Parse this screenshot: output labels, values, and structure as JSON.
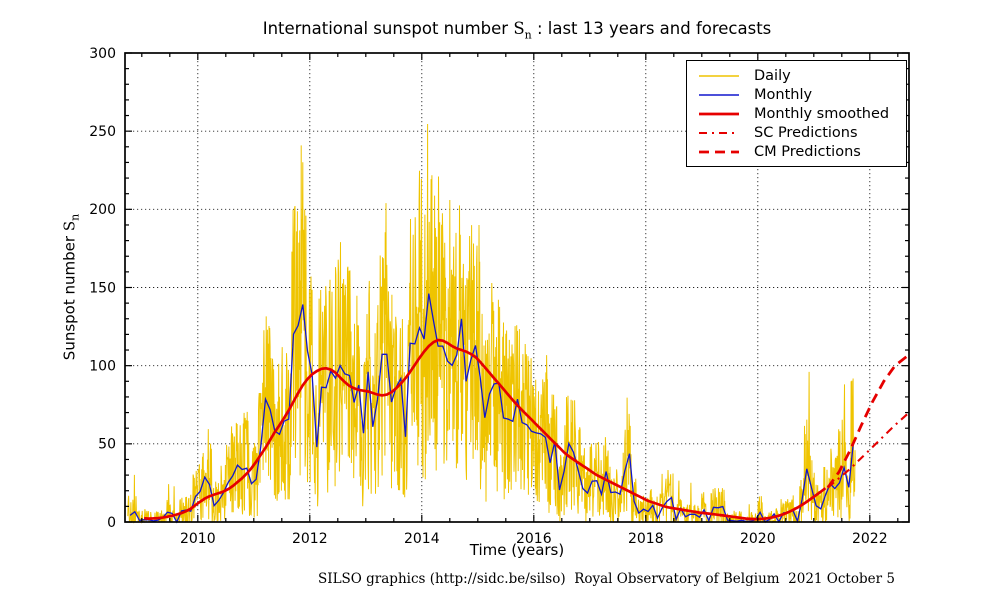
{
  "title": {
    "prefix": "International sunspot number ",
    "symbol": "S",
    "subscript": "n",
    "suffix": " : last 13 years and forecasts"
  },
  "footer": "SILSO graphics (http://sidc.be/silso)  Royal Observatory of Belgium  2021 October 5",
  "axes": {
    "x": {
      "label": "Time (years)",
      "min": 2008.7,
      "max": 2022.7,
      "major_ticks": [
        2010,
        2012,
        2014,
        2016,
        2018,
        2020,
        2022
      ],
      "minor_step": 0.5
    },
    "y": {
      "label_prefix": "Sunspot number ",
      "label_symbol": "S",
      "label_subscript": "n",
      "min": 0,
      "max": 300,
      "major_ticks": [
        0,
        50,
        100,
        150,
        200,
        250,
        300
      ],
      "minor_step": 10
    }
  },
  "legend": {
    "items": [
      {
        "label": "Daily",
        "color": "#EFC400",
        "width": 1.4,
        "dash": "none"
      },
      {
        "label": "Monthly",
        "color": "#1016CE",
        "width": 1.6,
        "dash": "none"
      },
      {
        "label": "Monthly smoothed",
        "color": "#E60000",
        "width": 2.8,
        "dash": "none"
      },
      {
        "label": "SC Predictions",
        "color": "#E60000",
        "width": 2.1,
        "dash": "8 5 2 5"
      },
      {
        "label": "CM Predictions",
        "color": "#E60000",
        "width": 2.8,
        "dash": "10 6"
      }
    ]
  },
  "chart_data": {
    "type": "line",
    "title": "International sunspot number Sn : last 13 years and forecasts",
    "xlabel": "Time (years)",
    "ylabel": "Sunspot number Sn",
    "xlim": [
      2008.7,
      2022.7
    ],
    "ylim": [
      0,
      300
    ],
    "grid": "black dotted at major ticks",
    "legend_position": "upper right",
    "series": [
      {
        "name": "Monthly",
        "color": "#1016CE",
        "width": 1.3,
        "dash": "none",
        "x_start": 2008.7917,
        "x_step": 0.0833333,
        "values": [
          4.2,
          6.6,
          1.0,
          1.5,
          1.4,
          0.7,
          1.2,
          2.9,
          6.3,
          5.5,
          0.0,
          7.1,
          7.7,
          6.9,
          16.3,
          19.5,
          28.7,
          24.0,
          10.4,
          13.9,
          18.8,
          25.2,
          29.6,
          36.4,
          33.6,
          34.4,
          24.5,
          27.3,
          48.3,
          78.6,
          71.9,
          58.2,
          56.1,
          64.5,
          65.8,
          120.1,
          125.7,
          139.1,
          109.3,
          94.4,
          47.9,
          86.2,
          85.9,
          96.5,
          92.0,
          100.1,
          94.8,
          93.7,
          76.5,
          87.6,
          56.8,
          96.1,
          60.9,
          78.3,
          107.3,
          107.3,
          76.7,
          86.2,
          91.8,
          54.5,
          114.4,
          113.9,
          124.2,
          117.0,
          146.1,
          128.7,
          112.5,
          112.5,
          102.9,
          100.2,
          106.9,
          130.0,
          90.0,
          103.6,
          112.9,
          93.0,
          66.7,
          81.9,
          88.4,
          88.8,
          66.5,
          65.8,
          64.4,
          78.6,
          63.6,
          62.2,
          58.0,
          57.0,
          56.4,
          54.1,
          37.9,
          51.5,
          20.5,
          32.4,
          50.2,
          44.6,
          33.4,
          21.4,
          18.5,
          26.1,
          26.4,
          17.7,
          32.3,
          18.9,
          19.2,
          17.8,
          32.6,
          43.7,
          13.2,
          5.7,
          8.2,
          6.8,
          10.7,
          2.5,
          8.9,
          13.1,
          15.6,
          1.6,
          8.7,
          3.3,
          4.9,
          4.9,
          3.1,
          7.8,
          0.8,
          9.4,
          9.1,
          9.9,
          1.2,
          0.9,
          0.5,
          1.1,
          0.4,
          0.5,
          1.5,
          6.2,
          0.2,
          1.5,
          5.2,
          0.2,
          5.8,
          6.1,
          7.5,
          0.6,
          14.4,
          34.0,
          21.8,
          10.4,
          8.4,
          17.2,
          24.5,
          21.4,
          25.1,
          34.8,
          22.2,
          51.6
        ]
      },
      {
        "name": "Monthly smoothed",
        "color": "#E60000",
        "width": 2.7,
        "dash": "none",
        "x_start": 2009.0417,
        "x_step": 0.0833333,
        "values": [
          2.4,
          2.2,
          2.3,
          2.5,
          2.8,
          3.4,
          4.0,
          4.8,
          5.7,
          7.0,
          8.5,
          10.8,
          13.0,
          15.0,
          16.5,
          17.5,
          18.5,
          19.5,
          21.0,
          23.0,
          25.5,
          28.0,
          31.0,
          34.5,
          38.5,
          43.0,
          47.5,
          52.5,
          57.5,
          62.0,
          66.5,
          71.5,
          77.0,
          82.5,
          87.5,
          91.5,
          94.5,
          96.5,
          98.0,
          98.3,
          97.5,
          95.5,
          92.5,
          89.5,
          87.0,
          85.5,
          84.5,
          84.0,
          83.5,
          82.5,
          81.5,
          81.0,
          81.5,
          83.0,
          85.5,
          88.5,
          92.0,
          96.0,
          100.5,
          105.0,
          109.0,
          112.5,
          115.0,
          116.4,
          116.0,
          114.5,
          112.5,
          111.0,
          110.0,
          109.0,
          107.5,
          105.5,
          102.5,
          99.0,
          95.5,
          92.0,
          88.5,
          85.0,
          81.5,
          78.0,
          74.5,
          71.5,
          68.5,
          65.5,
          62.5,
          59.5,
          56.5,
          53.5,
          50.5,
          47.5,
          44.5,
          42.0,
          40.0,
          38.0,
          36.0,
          34.0,
          32.0,
          30.0,
          28.5,
          27.0,
          25.5,
          24.0,
          22.5,
          21.0,
          19.5,
          18.0,
          16.5,
          15.0,
          13.5,
          12.5,
          11.5,
          10.5,
          9.5,
          9.0,
          8.5,
          8.0,
          7.5,
          7.0,
          6.5,
          6.0,
          5.7,
          5.4,
          5.0,
          4.6,
          4.2,
          3.8,
          3.4,
          3.0,
          2.6,
          2.2,
          2.0,
          1.8,
          1.9,
          2.2,
          2.6,
          3.2,
          4.0,
          5.0,
          6.2,
          7.6,
          9.2,
          11.0,
          13.0,
          15.1,
          17.2,
          19.4,
          21.6
        ]
      },
      {
        "name": "SC Predictions",
        "color": "#E60000",
        "width": 2.1,
        "dash": "8 5 2 5",
        "x": [
          2021.25,
          2021.45,
          2021.65,
          2021.85,
          2022.05,
          2022.25,
          2022.45,
          2022.7
        ],
        "values": [
          22,
          28,
          34,
          41,
          48,
          55,
          62,
          70
        ]
      },
      {
        "name": "CM Predictions",
        "color": "#E60000",
        "width": 2.8,
        "dash": "10 6",
        "x": [
          2021.25,
          2021.45,
          2021.65,
          2021.85,
          2022.05,
          2022.25,
          2022.45,
          2022.7
        ],
        "values": [
          22,
          32,
          46,
          62,
          77,
          90,
          100,
          107
        ]
      },
      {
        "name": "Daily",
        "color": "#EFC400",
        "width": 1.0,
        "dash": "none",
        "synthesized_from": "Monthly",
        "note": "Daily values oscillate densely around monthly means (band roughly 0 to 2x monthly); individual days not readable from plot, regenerated as seeded noise.",
        "noise_seed": 20211005,
        "noise_scale": 0.72,
        "noise_base": 6,
        "spike_prob": 0.05,
        "points_per_month": 12,
        "max_value": 292,
        "notable_spikes": [
          [
            2011.93,
            196
          ],
          [
            2013.36,
            204
          ],
          [
            2014.3,
            221
          ],
          [
            2014.5,
            206
          ],
          [
            2015.02,
            190
          ],
          [
            2020.92,
            96
          ],
          [
            2021.55,
            88
          ]
        ]
      }
    ]
  }
}
